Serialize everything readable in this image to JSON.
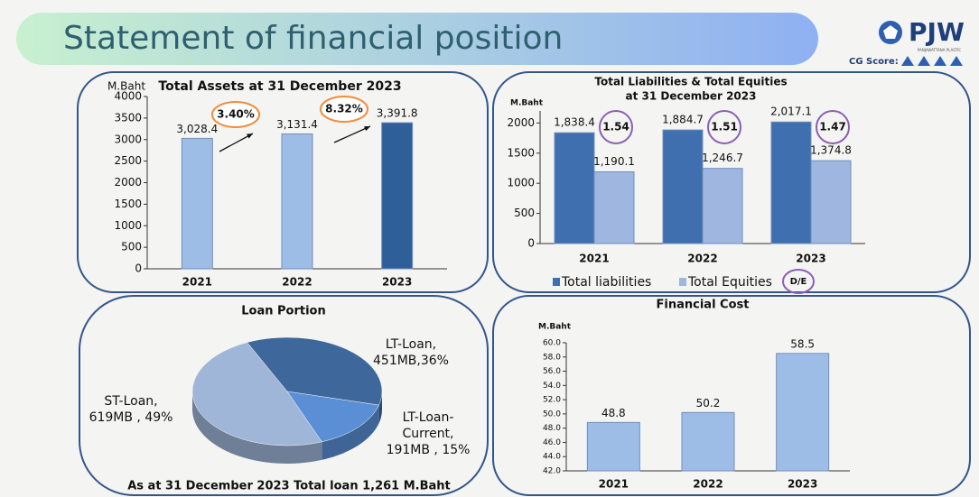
{
  "header": {
    "title": "Statement of financial position",
    "logo": "PJW",
    "logo_sub": "PANJAWATTANA PLASTIC",
    "cg_score_label": "CG Score:"
  },
  "chart_data": [
    {
      "type": "bar",
      "title": "Total Assets at 31 December 2023",
      "y_label": "M.Baht",
      "categories": [
        "2021",
        "2022",
        "2023"
      ],
      "values": [
        3028.4,
        3131.4,
        3391.8
      ],
      "value_labels": [
        "3,028.4",
        "3,131.4",
        "3,391.8"
      ],
      "colors": [
        "#9dbde6",
        "#9dbde6",
        "#2f5f98"
      ],
      "ylim": [
        0,
        4000
      ],
      "yticks": [
        0,
        500,
        1000,
        1500,
        2000,
        2500,
        3000,
        3500,
        4000
      ],
      "annotations": [
        "3.40%",
        "8.32%"
      ]
    },
    {
      "type": "grouped_bar",
      "title": [
        "Total Liabilities & Total Equities",
        "at 31 December 2023"
      ],
      "y_label": "M.Baht",
      "categories": [
        "2021",
        "2022",
        "2023"
      ],
      "series": [
        {
          "name": "Total liabilities",
          "color": "#3f6fae",
          "values": [
            1838.4,
            1884.7,
            2017.1
          ],
          "value_labels": [
            "1,838.4",
            "1,884.7",
            "2,017.1"
          ]
        },
        {
          "name": "Total Equities",
          "color": "#9fb6e0",
          "values": [
            1190.1,
            1246.7,
            1374.8
          ],
          "value_labels": [
            "1,190.1",
            "1,246.7",
            "1,374.8"
          ]
        }
      ],
      "ylim": [
        0,
        2200
      ],
      "yticks": [
        0,
        500,
        1000,
        1500,
        2000
      ],
      "ratio_label": "D/E",
      "ratios": [
        1.54,
        1.51,
        1.47
      ]
    },
    {
      "type": "pie",
      "title": "Loan Portion",
      "values": [
        36,
        15,
        49
      ],
      "colors": [
        "#3e679c",
        "#5a8fd6",
        "#9fb6d8"
      ],
      "labels": [
        [
          "LT-Loan,",
          "451MB,36%"
        ],
        [
          "LT-Loan-",
          "Current,",
          "191MB , 15%"
        ],
        [
          "ST-Loan,",
          "619MB , 49%"
        ]
      ],
      "footer": "As at 31 December 2023 Total loan 1,261 M.Baht"
    },
    {
      "type": "bar",
      "title": "Financial Cost",
      "y_label": "M.Baht",
      "categories": [
        "2021",
        "2022",
        "2023"
      ],
      "values": [
        48.8,
        50.2,
        58.5
      ],
      "colors": [
        "#9dbde6",
        "#9dbde6",
        "#9dbde6"
      ],
      "ylim": [
        42,
        60
      ],
      "yticks": [
        {
          "value": 42,
          "label": "42.0"
        },
        {
          "value": 44,
          "label": "44.0"
        },
        {
          "value": 46,
          "label": "46.0"
        },
        {
          "value": 48,
          "label": "48.0"
        },
        {
          "value": 50,
          "label": "50.0"
        },
        {
          "value": 52,
          "label": "52.0"
        },
        {
          "value": 54,
          "label": "54.0"
        },
        {
          "value": 56,
          "label": "56.0"
        },
        {
          "value": 58,
          "label": "58.0"
        },
        {
          "value": 60,
          "label": "60.0"
        }
      ]
    }
  ]
}
